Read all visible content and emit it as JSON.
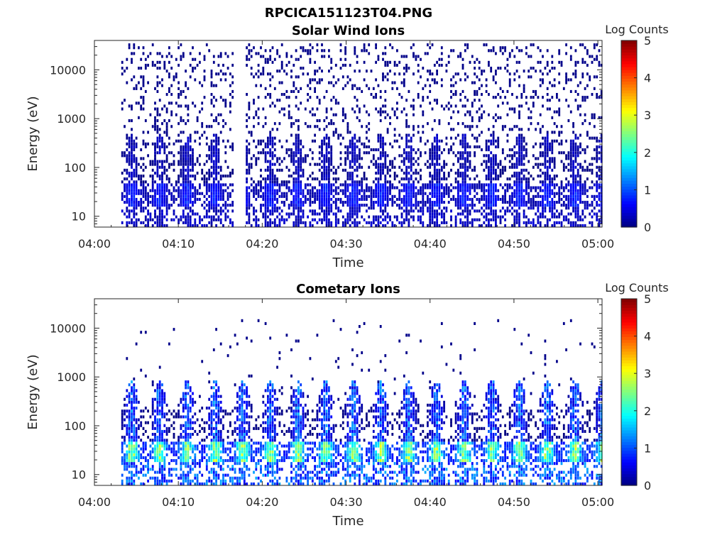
{
  "figure_title": "RPCICA151123T04.PNG",
  "chart_data": [
    {
      "type": "heatmap",
      "title": "Solar Wind Ions",
      "xlabel": "Time",
      "ylabel": "Energy (eV)",
      "x_ticks": [
        "04:00",
        "04:10",
        "04:20",
        "04:30",
        "04:40",
        "04:50",
        "05:00"
      ],
      "x_range_minutes": [
        0,
        60.5
      ],
      "y_ticks": [
        "10",
        "100",
        "1000",
        "10000"
      ],
      "y_scale": "log",
      "y_range": [
        6,
        40000
      ],
      "colorbar_label": "Log Counts",
      "colorbar_ticks": [
        "0",
        "1",
        "2",
        "3",
        "4",
        "5"
      ],
      "colorbar_range": [
        0,
        5
      ],
      "colormap": "jet",
      "data_start_minute": 3.2,
      "gap_minutes": [
        16.5,
        18.0
      ],
      "pulse_period_minutes": 3.3,
      "core_energy_range_eV": [
        15,
        45
      ],
      "core_log_counts": 0.6,
      "background_log_counts": 0.05,
      "background_max_energy_eV": 35000,
      "spike_max_energy_eV": 400
    },
    {
      "type": "heatmap",
      "title": "Cometary Ions",
      "xlabel": "Time",
      "ylabel": "Energy (eV)",
      "x_ticks": [
        "04:00",
        "04:10",
        "04:20",
        "04:30",
        "04:40",
        "04:50",
        "05:00"
      ],
      "x_range_minutes": [
        0,
        60.5
      ],
      "y_ticks": [
        "10",
        "100",
        "1000",
        "10000"
      ],
      "y_scale": "log",
      "y_range": [
        6,
        40000
      ],
      "colorbar_label": "Log Counts",
      "colorbar_ticks": [
        "0",
        "1",
        "2",
        "3",
        "4",
        "5"
      ],
      "colorbar_range": [
        0,
        5
      ],
      "colormap": "jet",
      "data_start_minute": 3.2,
      "pulse_period_minutes": 3.3,
      "core_energy_range_eV": [
        18,
        45
      ],
      "core_log_counts": 2.0,
      "spike_max_energy_eV": 700,
      "background_log_counts": 0.05,
      "background_max_energy_eV": 15000
    }
  ]
}
